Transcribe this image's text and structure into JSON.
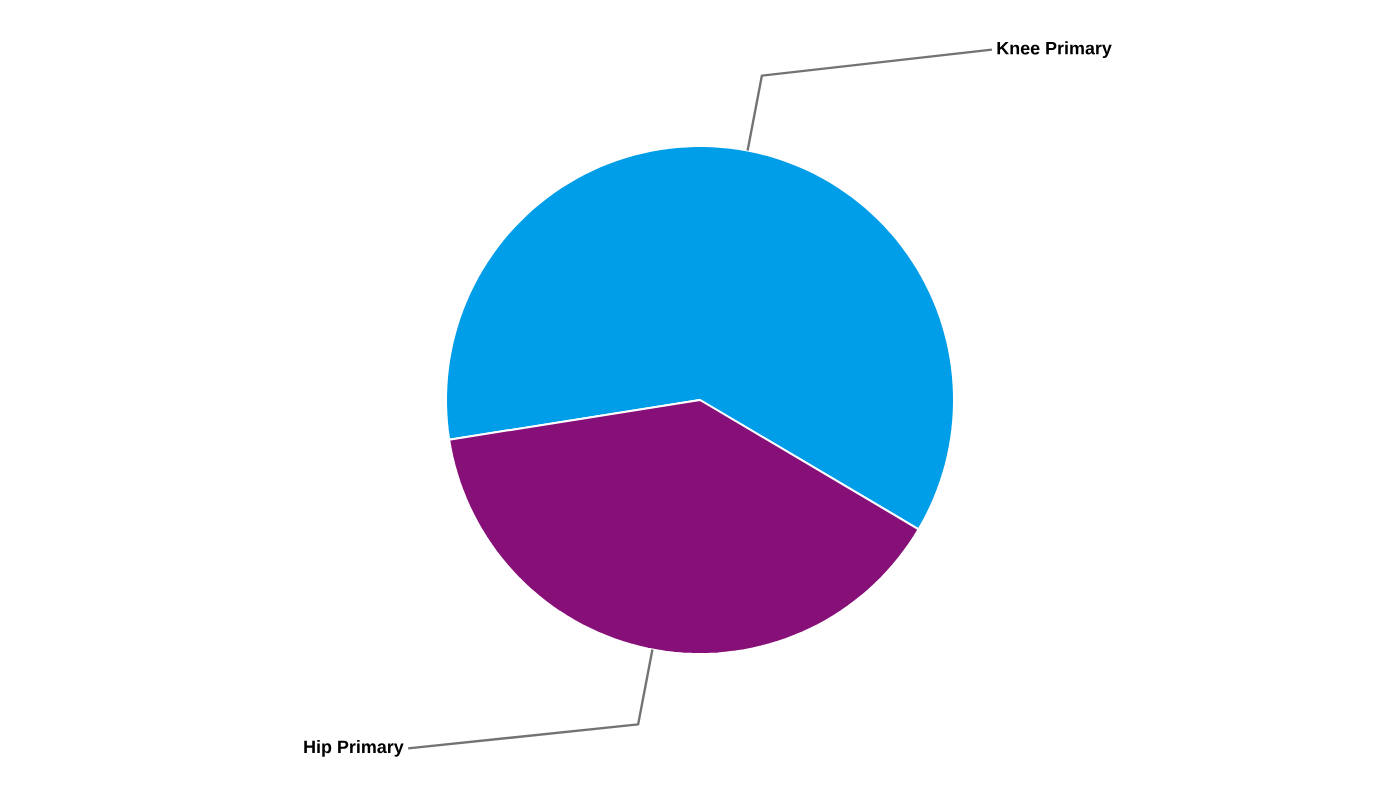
{
  "chart_data": {
    "type": "pie",
    "categories": [
      "Knee Primary",
      "Hip Primary"
    ],
    "values": [
      61,
      39
    ],
    "colors": [
      "#009ee9",
      "#870f78"
    ]
  }
}
